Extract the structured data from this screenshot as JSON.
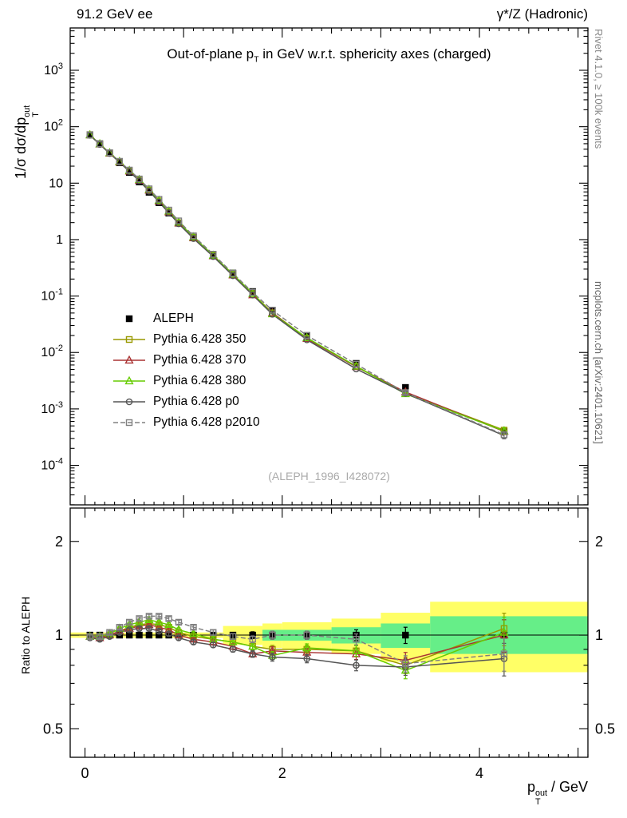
{
  "header": {
    "left": "91.2 GeV ee",
    "right": "γ*/Z (Hadronic)"
  },
  "title": {
    "pre": "Out-of-plane p",
    "sub": "T",
    "post": " in GeV w.r.t. sphericity axes (charged)"
  },
  "ylabel": {
    "pre": "1/σ  dσ/dp",
    "sub": "T",
    "sup": "out"
  },
  "ratio_ylabel": "Ratio to ALEPH",
  "xlabel": {
    "pre": "p",
    "sub": "T",
    "sup": "out",
    "post": " / GeV"
  },
  "watermark": "(ALEPH_1996_I428072)",
  "side_notes": {
    "top_right": "Rivet 4.1.0, ≥ 100k events",
    "bottom_right": "mcplots.cern.ch [arXiv:2401.10621]"
  },
  "chart_data": {
    "type": "line",
    "x": [
      0.05,
      0.15,
      0.25,
      0.35,
      0.45,
      0.55,
      0.65,
      0.75,
      0.85,
      0.95,
      1.1,
      1.3,
      1.5,
      1.7,
      1.9,
      2.25,
      2.75,
      3.25,
      4.25
    ],
    "reference": {
      "name": "ALEPH",
      "color": "#000000",
      "marker": "square-filled",
      "values": [
        72,
        50,
        34,
        23,
        15.5,
        10.5,
        6.9,
        4.5,
        2.95,
        1.95,
        1.1,
        0.54,
        0.255,
        0.12,
        0.056,
        0.02,
        0.0064,
        0.0024,
        0.0004
      ]
    },
    "series": [
      {
        "name": "Pythia 6.428 350",
        "color": "#999900",
        "marker": "square-open",
        "line": "solid",
        "ratio": [
          0.99,
          0.99,
          1.0,
          1.03,
          1.06,
          1.08,
          1.09,
          1.08,
          1.06,
          1.02,
          0.99,
          0.97,
          0.95,
          0.92,
          0.9,
          0.9,
          0.89,
          0.8,
          1.05
        ]
      },
      {
        "name": "Pythia 6.428 370",
        "color": "#aa3333",
        "marker": "triangle-open",
        "line": "solid",
        "ratio": [
          0.99,
          0.98,
          1.0,
          1.03,
          1.05,
          1.07,
          1.08,
          1.06,
          1.04,
          1.0,
          0.97,
          0.95,
          0.92,
          0.87,
          0.89,
          0.88,
          0.87,
          0.83,
          1.0
        ]
      },
      {
        "name": "Pythia 6.428 380",
        "color": "#66cc00",
        "marker": "triangle-open",
        "line": "solid",
        "ratio": [
          0.99,
          0.99,
          1.01,
          1.05,
          1.08,
          1.1,
          1.12,
          1.1,
          1.08,
          1.04,
          1.01,
          0.97,
          0.95,
          0.92,
          0.86,
          0.91,
          0.89,
          0.77,
          1.02
        ]
      },
      {
        "name": "Pythia 6.428 p0",
        "color": "#555555",
        "marker": "circle-open",
        "line": "solid",
        "ratio": [
          0.98,
          0.97,
          0.99,
          1.02,
          1.04,
          1.05,
          1.05,
          1.03,
          1.01,
          0.98,
          0.95,
          0.93,
          0.9,
          0.87,
          0.85,
          0.84,
          0.8,
          0.79,
          0.84
        ]
      },
      {
        "name": "Pythia 6.428 p2010",
        "color": "#808080",
        "marker": "square-open",
        "line": "dashed",
        "ratio": [
          0.99,
          0.99,
          1.02,
          1.06,
          1.1,
          1.13,
          1.15,
          1.15,
          1.13,
          1.1,
          1.06,
          1.02,
          0.99,
          0.97,
          1.0,
          1.0,
          0.97,
          0.81,
          0.87
        ]
      }
    ],
    "ratio_err": [
      0.012,
      0.012,
      0.012,
      0.012,
      0.012,
      0.012,
      0.013,
      0.013,
      0.014,
      0.015,
      0.015,
      0.018,
      0.02,
      0.025,
      0.03,
      0.03,
      0.04,
      0.06,
      0.12
    ],
    "bands": {
      "yellow": {
        "color": "#ffff66",
        "segments": [
          [
            -0.15,
            1.4,
            0.98,
            1.02
          ],
          [
            1.4,
            1.8,
            0.93,
            1.07
          ],
          [
            1.8,
            2.0,
            0.91,
            1.09
          ],
          [
            2.0,
            2.5,
            0.9,
            1.1
          ],
          [
            2.5,
            3.0,
            0.87,
            1.13
          ],
          [
            3.0,
            3.5,
            0.82,
            1.18
          ],
          [
            3.5,
            5.1,
            0.76,
            1.28
          ]
        ]
      },
      "green": {
        "color": "#66ee88",
        "segments": [
          [
            1.8,
            2.5,
            0.96,
            1.04
          ],
          [
            2.5,
            3.0,
            0.94,
            1.06
          ],
          [
            3.0,
            3.5,
            0.91,
            1.09
          ],
          [
            3.5,
            5.1,
            0.87,
            1.15
          ]
        ]
      }
    },
    "axes": {
      "x": {
        "lim": [
          -0.15,
          5.1
        ],
        "major_ticks": [
          0,
          2,
          4
        ],
        "tick_labels": [
          "0",
          "2",
          "4"
        ]
      },
      "y_main": {
        "scale": "log",
        "lim_exp": [
          -4.7,
          3.75
        ],
        "label_exps": [
          3,
          2,
          1,
          0,
          -1,
          -2,
          -3,
          -4
        ]
      },
      "y_ratio": {
        "scale": "log",
        "lim": [
          0.405,
          2.56
        ],
        "ticks": [
          0.5,
          1,
          2
        ],
        "tick_labels": [
          "0.5",
          "1",
          "2"
        ],
        "minor_ticks": [
          0.6,
          0.7,
          0.8,
          0.9
        ]
      }
    }
  }
}
